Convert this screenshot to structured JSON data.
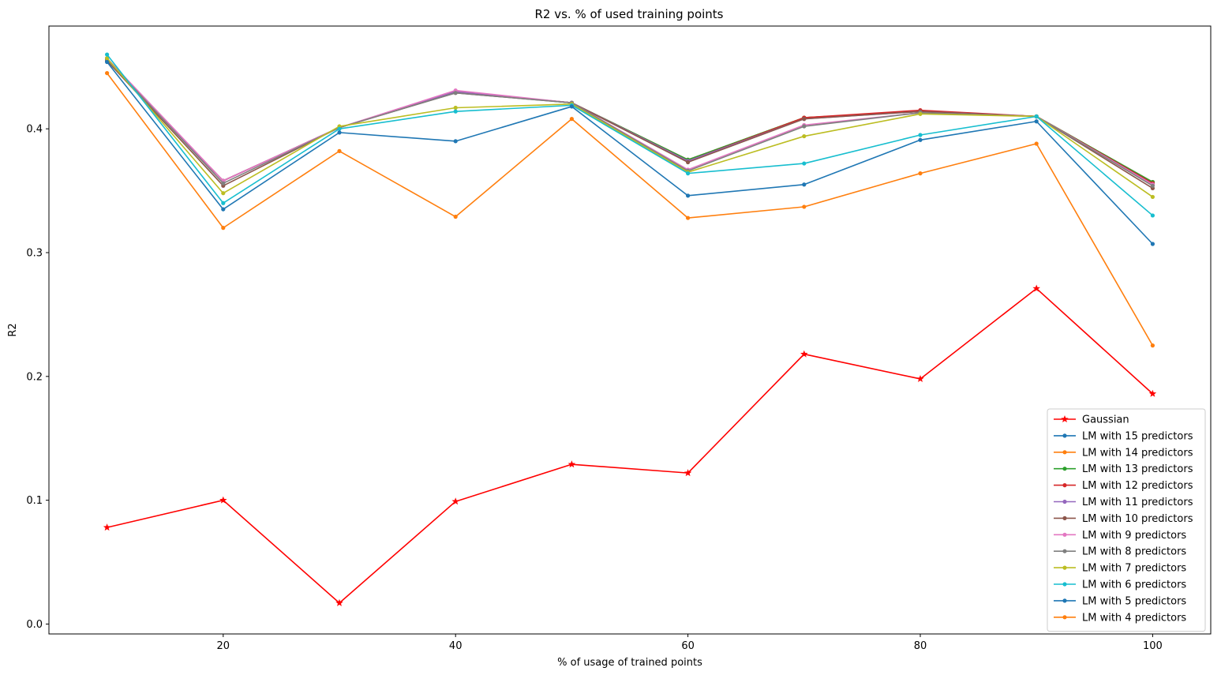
{
  "chart_data": {
    "type": "line",
    "title": "R2 vs. % of used training points",
    "xlabel": "% of usage of trained points",
    "ylabel": "R2",
    "xlim": [
      5,
      105
    ],
    "ylim": [
      -0.008,
      0.483
    ],
    "xticks": [
      20,
      40,
      60,
      80,
      100
    ],
    "xtick_labels": [
      "20",
      "40",
      "60",
      "80",
      "100"
    ],
    "yticks": [
      0.0,
      0.1,
      0.2,
      0.3,
      0.4
    ],
    "ytick_labels": [
      "0.0",
      "0.1",
      "0.2",
      "0.3",
      "0.4"
    ],
    "grid": false,
    "legend_position": "lower-right",
    "x": [
      10,
      20,
      30,
      40,
      50,
      60,
      70,
      80,
      90,
      100
    ],
    "series": [
      {
        "name": "Gaussian",
        "color": "#ff0000",
        "marker": "star",
        "values": [
          0.078,
          0.1,
          0.017,
          0.099,
          0.129,
          0.122,
          0.218,
          0.198,
          0.271,
          0.186
        ]
      },
      {
        "name": "LM with 15 predictors",
        "color": "#1f77b4",
        "marker": "dot",
        "values": [
          0.455,
          0.358,
          0.401,
          0.43,
          0.421,
          0.375,
          0.409,
          0.414,
          0.41,
          0.357
        ]
      },
      {
        "name": "LM with 14 predictors",
        "color": "#ff7f0e",
        "marker": "dot",
        "values": [
          0.455,
          0.358,
          0.401,
          0.43,
          0.421,
          0.375,
          0.409,
          0.414,
          0.41,
          0.357
        ]
      },
      {
        "name": "LM with 13 predictors",
        "color": "#2ca02c",
        "marker": "dot",
        "values": [
          0.455,
          0.358,
          0.401,
          0.43,
          0.421,
          0.375,
          0.409,
          0.414,
          0.41,
          0.357
        ]
      },
      {
        "name": "LM with 12 predictors",
        "color": "#d62728",
        "marker": "dot",
        "values": [
          0.455,
          0.358,
          0.401,
          0.43,
          0.421,
          0.374,
          0.409,
          0.415,
          0.41,
          0.356
        ]
      },
      {
        "name": "LM with 11 predictors",
        "color": "#9467bd",
        "marker": "dot",
        "values": [
          0.455,
          0.358,
          0.401,
          0.43,
          0.421,
          0.374,
          0.408,
          0.414,
          0.41,
          0.355
        ]
      },
      {
        "name": "LM with 10 predictors",
        "color": "#8c564b",
        "marker": "dot",
        "values": [
          0.455,
          0.354,
          0.401,
          0.429,
          0.421,
          0.373,
          0.408,
          0.414,
          0.41,
          0.352
        ]
      },
      {
        "name": "LM with 9 predictors",
        "color": "#e377c2",
        "marker": "dot",
        "values": [
          0.457,
          0.358,
          0.401,
          0.431,
          0.421,
          0.367,
          0.403,
          0.413,
          0.41,
          0.355
        ]
      },
      {
        "name": "LM with 8 predictors",
        "color": "#7f7f7f",
        "marker": "dot",
        "values": [
          0.456,
          0.356,
          0.401,
          0.429,
          0.421,
          0.366,
          0.402,
          0.413,
          0.41,
          0.354
        ]
      },
      {
        "name": "LM with 7 predictors",
        "color": "#bcbd22",
        "marker": "dot",
        "values": [
          0.457,
          0.348,
          0.402,
          0.417,
          0.42,
          0.365,
          0.394,
          0.412,
          0.41,
          0.345
        ]
      },
      {
        "name": "LM with 6 predictors",
        "color": "#17becf",
        "marker": "dot",
        "values": [
          0.46,
          0.34,
          0.4,
          0.414,
          0.419,
          0.364,
          0.372,
          0.395,
          0.41,
          0.33
        ]
      },
      {
        "name": "LM with 5 predictors",
        "color": "#1f77b4",
        "marker": "dot",
        "values": [
          0.454,
          0.335,
          0.397,
          0.39,
          0.418,
          0.346,
          0.355,
          0.391,
          0.406,
          0.307
        ]
      },
      {
        "name": "LM with 4 predictors",
        "color": "#ff7f0e",
        "marker": "dot",
        "values": [
          0.445,
          0.32,
          0.382,
          0.329,
          0.408,
          0.328,
          0.337,
          0.364,
          0.388,
          0.225
        ]
      }
    ]
  }
}
